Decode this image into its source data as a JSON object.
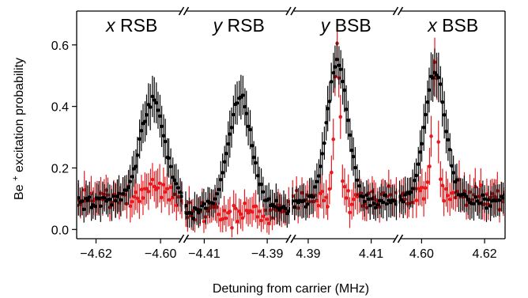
{
  "chart_data": {
    "type": "scatter",
    "xlabel": "Detuning from carrier (MHz)",
    "ylabel": "Be + excitation probability",
    "ylabel_main": "Be",
    "ylabel_sup": "+",
    "ylabel_rest": " excitation probability",
    "ylim": [
      -0.03,
      0.71
    ],
    "y_ticks": [
      0.0,
      0.2,
      0.4,
      0.6
    ],
    "y_tick_labels": [
      "0.0",
      "0.2",
      "0.4",
      "0.6"
    ],
    "grid": false,
    "panels": [
      {
        "label_var": "x",
        "label_rest": " RSB",
        "xlim": [
          -4.626,
          -4.5928
        ],
        "x_ticks": [
          -4.62,
          -4.6
        ],
        "x_tick_labels": [
          "−4.62",
          "−4.60"
        ],
        "center": -4.6025,
        "sigma": 0.0038,
        "black": {
          "base": 0.095,
          "amp": 0.315
        },
        "red": {
          "base": 0.095,
          "amp": 0.05
        }
      },
      {
        "label_var": "y",
        "label_rest": " RSB",
        "xlim": [
          -4.4165,
          -4.3825
        ],
        "x_ticks": [
          -4.41,
          -4.39
        ],
        "x_tick_labels": [
          "−4.41",
          "−4.39"
        ],
        "center": -4.3986,
        "sigma": 0.0037,
        "black": {
          "base": 0.065,
          "amp": 0.36
        },
        "red": {
          "base": 0.055,
          "amp": 0.0
        }
      },
      {
        "label_var": "y",
        "label_rest": " BSB",
        "xlim": [
          4.3845,
          4.4185
        ],
        "x_ticks": [
          4.39,
          4.41
        ],
        "x_tick_labels": [
          "4.39",
          "4.41"
        ],
        "center": 4.3993,
        "sigma": 0.0033,
        "black": {
          "base": 0.09,
          "amp": 0.45
        },
        "red": {
          "base": 0.1,
          "amp": 0.5
        },
        "red_center": 4.3992,
        "red_sigma": 0.0009
      },
      {
        "label_var": "x",
        "label_rest": " BSB",
        "xlim": [
          4.5925,
          4.6265
        ],
        "x_ticks": [
          4.6,
          4.62
        ],
        "x_tick_labels": [
          "4.60",
          "4.62"
        ],
        "center": 4.6042,
        "sigma": 0.0033,
        "black": {
          "base": 0.095,
          "amp": 0.42
        },
        "red": {
          "base": 0.11,
          "amp": 0.45
        },
        "red_center": 4.6042,
        "red_sigma": 0.0009
      }
    ],
    "series": [
      {
        "color": "#000000",
        "marker": "circle",
        "errorbars": true
      },
      {
        "color": "#e8191c",
        "marker": "circle",
        "errorbars": true
      }
    ]
  }
}
